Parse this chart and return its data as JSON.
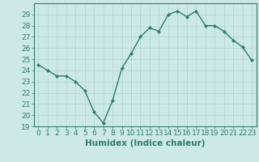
{
  "x": [
    0,
    1,
    2,
    3,
    4,
    5,
    6,
    7,
    8,
    9,
    10,
    11,
    12,
    13,
    14,
    15,
    16,
    17,
    18,
    19,
    20,
    21,
    22,
    23
  ],
  "y": [
    24.5,
    24.0,
    23.5,
    23.5,
    23.0,
    22.2,
    20.3,
    19.3,
    21.3,
    24.2,
    25.5,
    27.0,
    27.8,
    27.5,
    29.0,
    29.3,
    28.8,
    29.3,
    28.0,
    28.0,
    27.5,
    26.7,
    26.1,
    24.9
  ],
  "line_color": "#2e7d6e",
  "marker": "D",
  "marker_size": 2,
  "bg_color": "#cce9e7",
  "grid_color": "#aed4d1",
  "xlabel": "Humidex (Indice chaleur)",
  "xlim": [
    -0.5,
    23.5
  ],
  "ylim": [
    19,
    30
  ],
  "yticks": [
    19,
    20,
    21,
    22,
    23,
    24,
    25,
    26,
    27,
    28,
    29
  ],
  "xticks": [
    0,
    1,
    2,
    3,
    4,
    5,
    6,
    7,
    8,
    9,
    10,
    11,
    12,
    13,
    14,
    15,
    16,
    17,
    18,
    19,
    20,
    21,
    22,
    23
  ],
  "tick_fontsize": 6.5,
  "xlabel_fontsize": 7.5,
  "tick_color": "#2e7d6e",
  "spine_color": "#2e7d6e",
  "line_width": 1.0
}
